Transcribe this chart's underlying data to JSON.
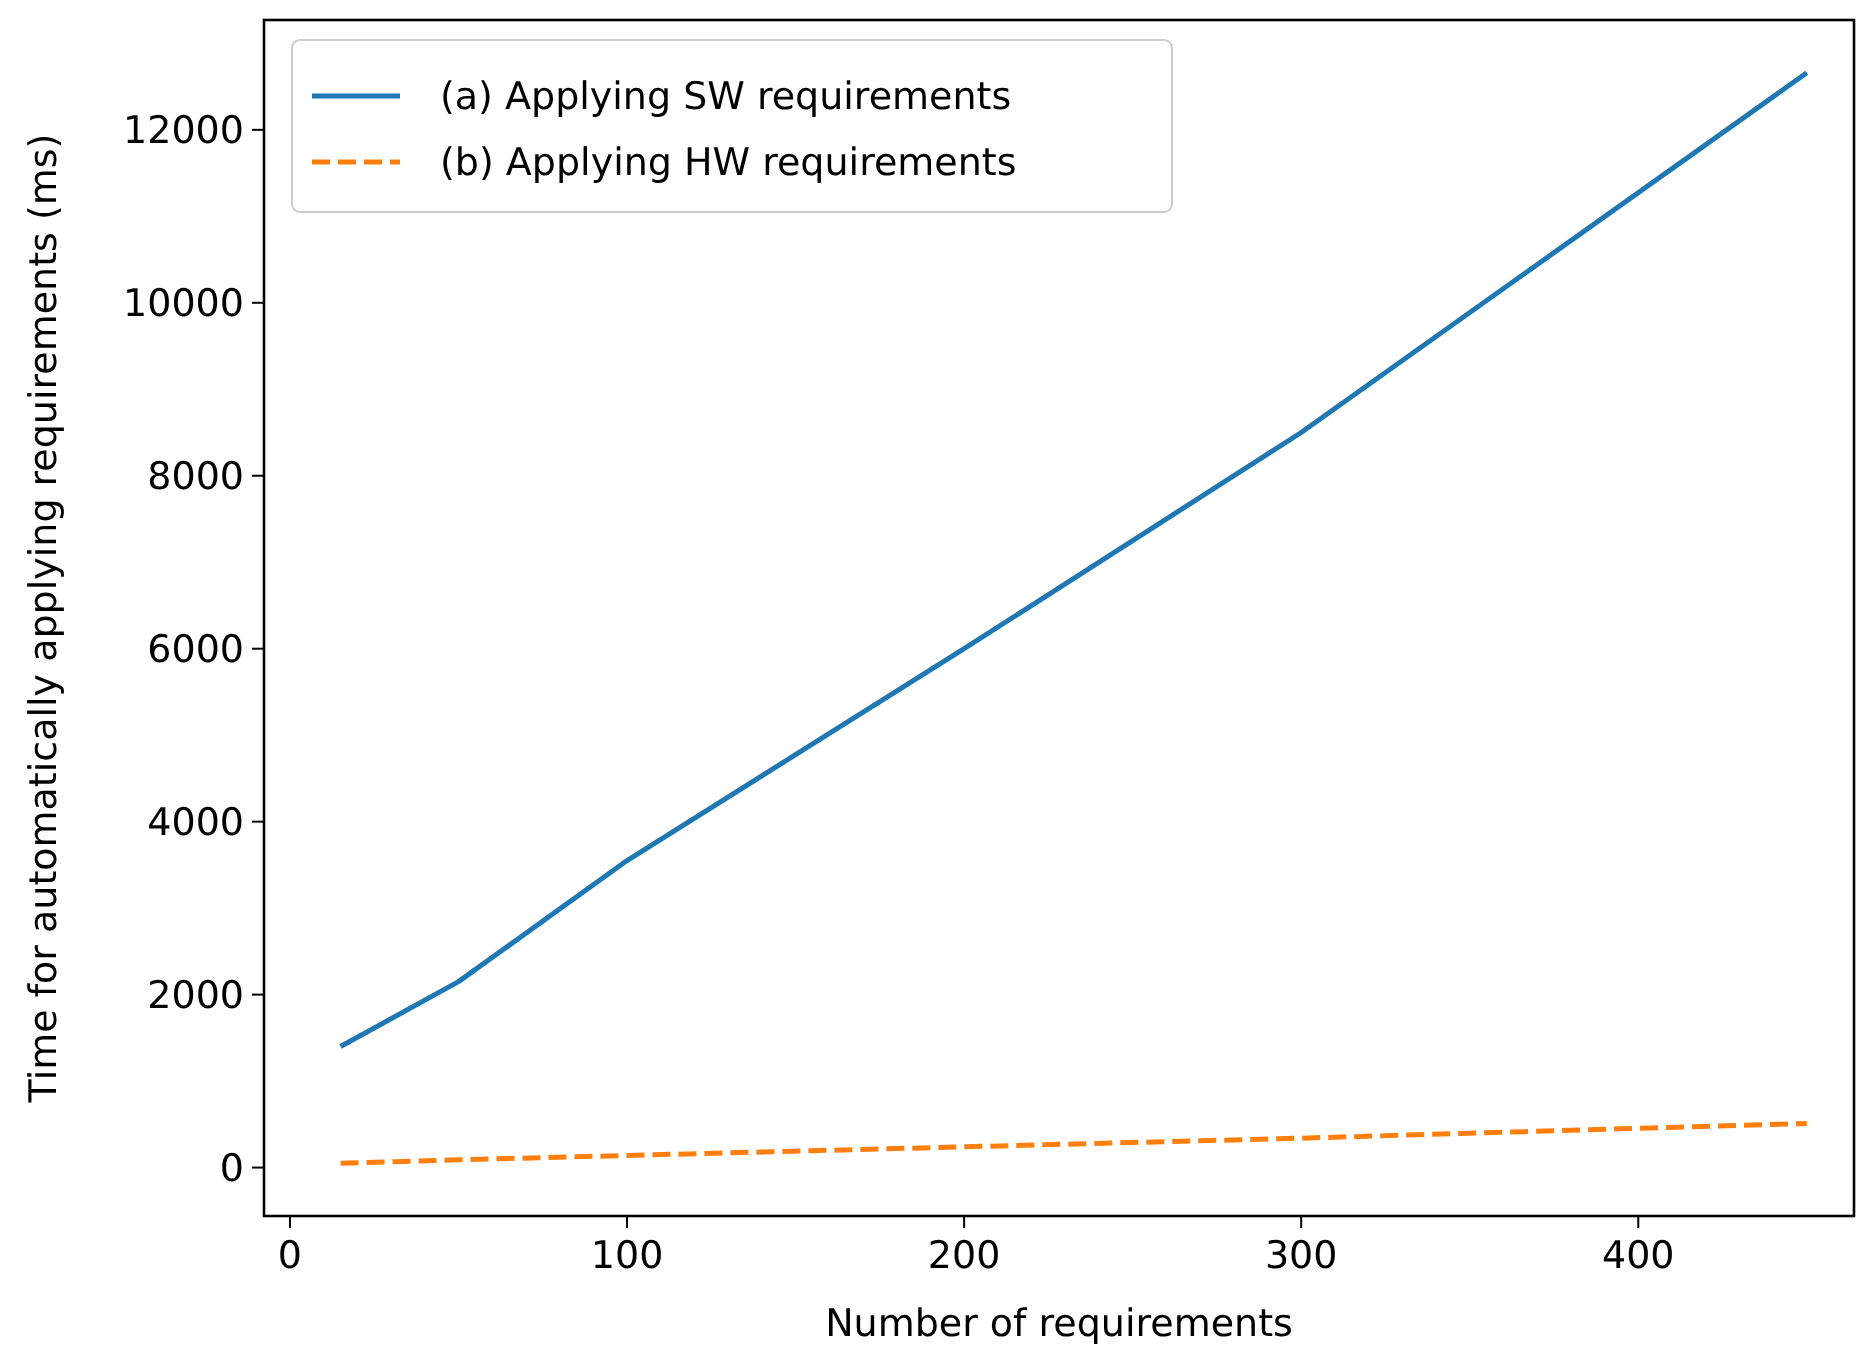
{
  "chart_data": {
    "type": "line",
    "xlabel": "Number of requirements",
    "ylabel": "Time for automatically applying requirements (ms)",
    "x": [
      15,
      50,
      100,
      200,
      300,
      450
    ],
    "series": [
      {
        "name": "(a) Applying SW requirements",
        "color": "#1f77b4",
        "line_style": "solid",
        "values": [
          1400,
          2150,
          3550,
          6000,
          8500,
          12660
        ]
      },
      {
        "name": "(b) Applying HW requirements",
        "color": "#ff7f0e",
        "line_style": "dashed",
        "values": [
          50,
          90,
          140,
          240,
          340,
          510
        ]
      }
    ],
    "xlim": [
      -7.7,
      464
    ],
    "xticks": [
      0,
      100,
      200,
      300,
      400
    ],
    "ylim": [
      -560,
      13270
    ],
    "yticks": [
      0,
      2000,
      4000,
      6000,
      8000,
      10000,
      12000
    ],
    "legend": "top left",
    "grid": false
  }
}
